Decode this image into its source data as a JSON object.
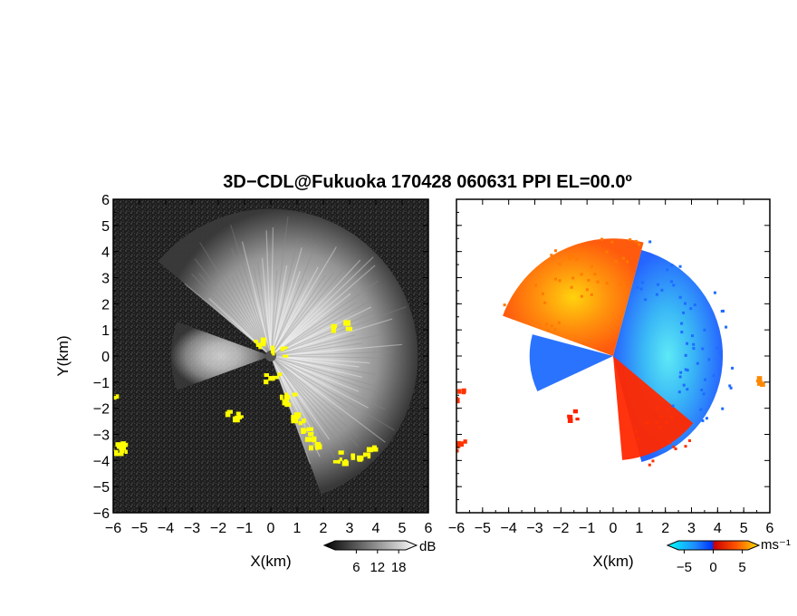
{
  "title": "3D−CDL@Fukuoka 170428 060631 PPI EL=00.0º",
  "chart_data": [
    {
      "type": "heatmap",
      "panel": "reflectivity",
      "xlabel": "X(km)",
      "ylabel": "Y(km)",
      "xlim": [
        -6,
        6
      ],
      "ylim": [
        -6,
        6
      ],
      "x_ticks": [
        -6,
        -5,
        -4,
        -3,
        -2,
        -1,
        0,
        1,
        2,
        3,
        4,
        5,
        6
      ],
      "y_ticks": [
        -6,
        -5,
        -4,
        -3,
        -2,
        -1,
        0,
        1,
        2,
        3,
        4,
        5,
        6
      ],
      "x_tick_labels": [
        "−6",
        "−5",
        "−4",
        "−3",
        "−2",
        "−1",
        "0",
        "1",
        "2",
        "3",
        "4",
        "5",
        "6"
      ],
      "y_tick_labels": [
        "−6",
        "−5",
        "−4",
        "−3",
        "−2",
        "−1",
        "0",
        "1",
        "2",
        "3",
        "4",
        "5",
        "6"
      ],
      "colorbar": {
        "unit": "dB",
        "tick_values": [
          6,
          12,
          18
        ],
        "tick_labels": [
          "6",
          "12",
          "18"
        ],
        "range": [
          0,
          20
        ],
        "colors": [
          "#000000",
          "#ffffff"
        ]
      },
      "background_color": "#1e1e1e",
      "highlight_color": "#ffff00",
      "cone_deg": [
        -70,
        140
      ],
      "yellow_clusters": [
        {
          "x": -6.0,
          "y": -1.3
        },
        {
          "x": -5.95,
          "y": -3.3
        },
        {
          "x": -5.8,
          "y": -3.5
        },
        {
          "x": 0.0,
          "y": -0.8
        },
        {
          "x": 0.6,
          "y": -1.6
        },
        {
          "x": 1.0,
          "y": -2.3
        },
        {
          "x": 1.4,
          "y": -2.9
        },
        {
          "x": 1.7,
          "y": -3.5
        },
        {
          "x": 2.5,
          "y": -3.8
        },
        {
          "x": 3.3,
          "y": -3.8
        },
        {
          "x": 3.7,
          "y": -3.6
        },
        {
          "x": 2.6,
          "y": 1.2
        },
        {
          "x": -0.4,
          "y": 0.6
        },
        {
          "x": 0.3,
          "y": 0.2
        },
        {
          "x": -1.5,
          "y": -2.2
        }
      ]
    },
    {
      "type": "heatmap",
      "panel": "radial_velocity",
      "xlabel": "X(km)",
      "xlim": [
        -6,
        6
      ],
      "ylim": [
        -6,
        6
      ],
      "x_ticks": [
        -6,
        -5,
        -4,
        -3,
        -2,
        -1,
        0,
        1,
        2,
        3,
        4,
        5,
        6
      ],
      "x_tick_labels": [
        "−6",
        "−5",
        "−4",
        "−3",
        "−2",
        "−1",
        "0",
        "1",
        "2",
        "3",
        "4",
        "5",
        "6"
      ],
      "colorbar": {
        "unit": "ms⁻¹",
        "tick_values": [
          -5,
          0,
          5
        ],
        "tick_labels": [
          "−5",
          "0",
          "5"
        ],
        "range": [
          -6,
          6
        ],
        "colors": [
          "#00ffff",
          "#0044ff",
          "#cc0000",
          "#ff4400",
          "#ffcc00"
        ]
      },
      "regions": [
        {
          "name": "approaching",
          "angle_deg": [
            -75,
            75
          ],
          "r_max_km": 4.2,
          "color": "#22a6f2"
        },
        {
          "name": "receding_north",
          "angle_deg": [
            75,
            160
          ],
          "r_max_km": 4.5,
          "color": "#ff6a00"
        },
        {
          "name": "approaching_west",
          "angle_deg": [
            165,
            205
          ],
          "r_max_km": 3.2,
          "color": "#1f6cff"
        },
        {
          "name": "receding_south",
          "angle_deg": [
            -85,
            -40
          ],
          "r_max_km": 4.0,
          "color": "#ff2800"
        }
      ],
      "edge_clusters": [
        {
          "x": -5.95,
          "y": -1.4,
          "color": "#ff3300"
        },
        {
          "x": -5.9,
          "y": -3.4,
          "color": "#ff3300"
        },
        {
          "x": -1.6,
          "y": -2.2,
          "color": "#ff2200"
        },
        {
          "x": 5.6,
          "y": -0.8,
          "color": "#ff8800"
        }
      ]
    }
  ]
}
